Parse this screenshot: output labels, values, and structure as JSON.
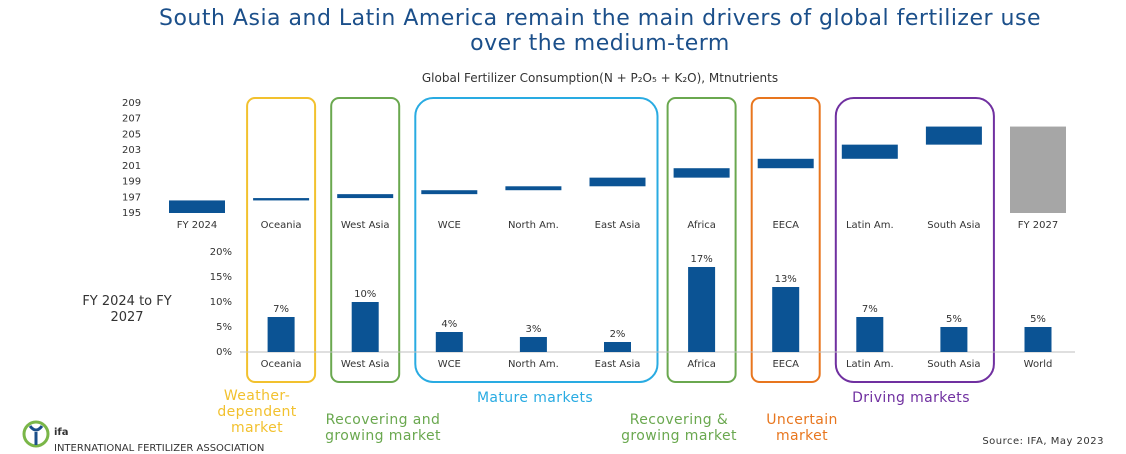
{
  "title": "South Asia and Latin America remain the main drivers of global fertilizer use over the medium-term",
  "subtitle": "Global Fertilizer Consumption(N + P₂O₅ + K₂O), Mtnutrients",
  "chart_data": [
    {
      "type": "waterfall",
      "categories": [
        "FY 2024",
        "Oceania",
        "West Asia",
        "WCE",
        "North Am.",
        "East Asia",
        "Africa",
        "EECA",
        "Latin Am.",
        "South Asia",
        "FY 2027"
      ],
      "measure": [
        "total",
        "relative",
        "relative",
        "relative",
        "relative",
        "relative",
        "relative",
        "relative",
        "relative",
        "relative",
        "total"
      ],
      "values": [
        196.6,
        0.3,
        0.5,
        0.5,
        0.5,
        1.1,
        1.2,
        1.2,
        1.8,
        2.3,
        206.0
      ],
      "colors": [
        "#0b5394",
        "#0b5394",
        "#0b5394",
        "#0b5394",
        "#0b5394",
        "#0b5394",
        "#0b5394",
        "#0b5394",
        "#0b5394",
        "#0b5394",
        "#a6a6a6"
      ],
      "ylim": [
        195,
        209
      ],
      "yticks": [
        195,
        197,
        199,
        201,
        203,
        205,
        207,
        209
      ]
    },
    {
      "type": "bar",
      "y_label": "FY 2024 to FY 2027",
      "categories": [
        "Oceania",
        "West Asia",
        "WCE",
        "North Am.",
        "East Asia",
        "Africa",
        "EECA",
        "Latin Am.",
        "South Asia",
        "World"
      ],
      "values": [
        7,
        10,
        4,
        3,
        2,
        17,
        13,
        7,
        5,
        5
      ],
      "value_labels": [
        "7%",
        "10%",
        "4%",
        "3%",
        "2%",
        "17%",
        "13%",
        "7%",
        "5%",
        "5%"
      ],
      "color": "#0b5394",
      "ylim": [
        0,
        20
      ],
      "yticks": [
        {
          "value": 0,
          "label": "0%"
        },
        {
          "value": 5,
          "label": "5%"
        },
        {
          "value": 10,
          "label": "10%"
        },
        {
          "value": 15,
          "label": "15%"
        },
        {
          "value": 20,
          "label": "20%"
        }
      ]
    }
  ],
  "groups": [
    {
      "label": "Weather-dependent market",
      "color": "#f2c12e"
    },
    {
      "label": "Recovering and growing market",
      "color": "#6aa84f"
    },
    {
      "label": "Mature markets",
      "color": "#29abe2"
    },
    {
      "label": "Recovering & growing market",
      "color": "#6aa84f"
    },
    {
      "label": "Uncertain market",
      "color": "#e8761e"
    },
    {
      "label": "Driving markets",
      "color": "#7030a0"
    }
  ],
  "logo": {
    "text": "ifa",
    "tagline": "INTERNATIONAL FERTILIZER ASSOCIATION"
  },
  "source": "Source: IFA, May 2023"
}
